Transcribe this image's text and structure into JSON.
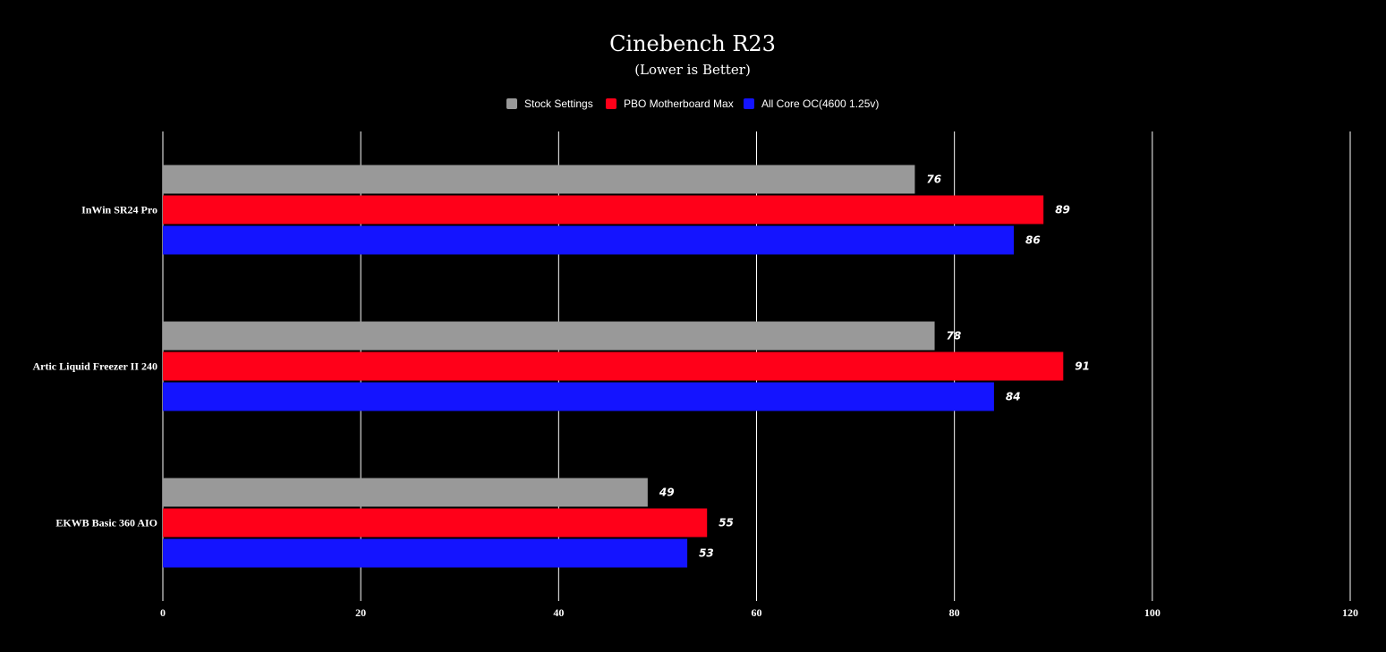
{
  "chart_data": {
    "type": "bar",
    "orientation": "horizontal",
    "title": "Cinebench R23",
    "subtitle": "(Lower is Better)",
    "categories": [
      "InWin SR24 Pro",
      "Artic Liquid Freezer II 240",
      "EKWB Basic 360 AIO"
    ],
    "series": [
      {
        "name": "Stock Settings",
        "color": "#999999",
        "values": [
          76,
          78,
          49
        ]
      },
      {
        "name": "PBO Motherboard Max",
        "color": "#ff0019",
        "values": [
          89,
          91,
          55
        ]
      },
      {
        "name": "All Core OC(4600 1.25v)",
        "color": "#1414ff",
        "values": [
          86,
          84,
          53
        ]
      }
    ],
    "xlim": [
      0,
      120
    ],
    "ticks": [
      "0",
      "20",
      "40",
      "60",
      "80",
      "100",
      "120"
    ],
    "tick_values": [
      0,
      20,
      40,
      60,
      80,
      100,
      120
    ],
    "grid": true,
    "legend_position": "top-center",
    "background": "#000000"
  }
}
